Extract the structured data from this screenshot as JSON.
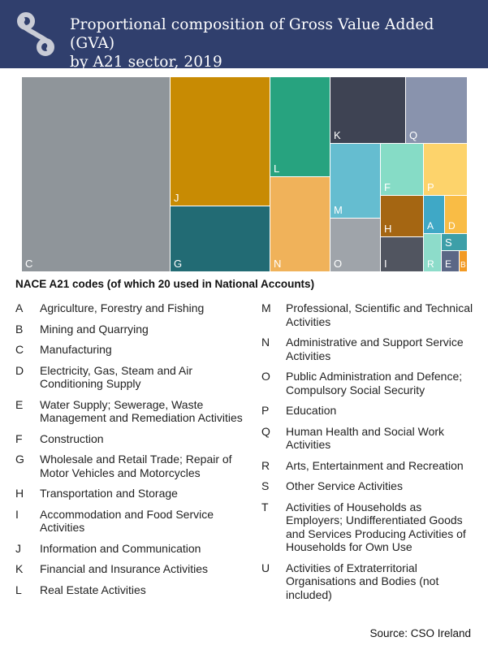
{
  "header": {
    "title_line1": "Proportional composition of Gross Value Added (GVA)",
    "title_line2": "by A21 sector, 2019",
    "logo_icon": "cso-logo-icon",
    "background_color": "#303f6d"
  },
  "chart_data": {
    "type": "treemap",
    "tiles": [
      {
        "code": "C",
        "color": "#8f959a"
      },
      {
        "code": "J",
        "color": "#c88b03"
      },
      {
        "code": "G",
        "color": "#226b74"
      },
      {
        "code": "L",
        "color": "#27a37f"
      },
      {
        "code": "N",
        "color": "#f0b25a"
      },
      {
        "code": "K",
        "color": "#3e4353"
      },
      {
        "code": "Q",
        "color": "#8993ad"
      },
      {
        "code": "M",
        "color": "#65bdd0"
      },
      {
        "code": "F",
        "color": "#86dcc6"
      },
      {
        "code": "P",
        "color": "#fdd36b"
      },
      {
        "code": "O",
        "color": "#9fa4aa"
      },
      {
        "code": "H",
        "color": "#a56612"
      },
      {
        "code": "A",
        "color": "#3fa8c6"
      },
      {
        "code": "D",
        "color": "#f9bc45"
      },
      {
        "code": "I",
        "color": "#515560"
      },
      {
        "code": "R",
        "color": "#8ddcca"
      },
      {
        "code": "S",
        "color": "#3d9fa8"
      },
      {
        "code": "E",
        "color": "#5b6786"
      },
      {
        "code": "B",
        "color": "#f29a24"
      }
    ]
  },
  "legend": {
    "title": "NACE A21 codes (of which 20 used in National Accounts)",
    "left": [
      {
        "code": "A",
        "desc": "Agriculture, Forestry and Fishing"
      },
      {
        "code": "B",
        "desc": "Mining and Quarrying"
      },
      {
        "code": "C",
        "desc": "Manufacturing"
      },
      {
        "code": "D",
        "desc": "Electricity, Gas, Steam and Air Conditioning Supply"
      },
      {
        "code": "E",
        "desc": "Water Supply; Sewerage, Waste Management and Remediation Activities"
      },
      {
        "code": "F",
        "desc": "Construction"
      },
      {
        "code": "G",
        "desc": "Wholesale and Retail Trade; Repair of Motor Vehicles and Motorcycles"
      },
      {
        "code": "H",
        "desc": "Transportation and Storage"
      },
      {
        "code": "I",
        "desc": "Accommodation and Food Service Activities"
      },
      {
        "code": "J",
        "desc": "Information and Communication"
      },
      {
        "code": "K",
        "desc": "Financial and Insurance Activities"
      },
      {
        "code": "L",
        "desc": "Real Estate Activities"
      }
    ],
    "right": [
      {
        "code": "M",
        "desc": "Professional, Scientific and Technical Activities"
      },
      {
        "code": "N",
        "desc": "Administrative and Support Service Activities"
      },
      {
        "code": "O",
        "desc": "Public Administration and Defence; Compulsory Social Security"
      },
      {
        "code": "P",
        "desc": "Education"
      },
      {
        "code": "Q",
        "desc": "Human Health and Social Work Activities"
      },
      {
        "code": "R",
        "desc": "Arts, Entertainment and Recreation"
      },
      {
        "code": "S",
        "desc": "Other Service Activities"
      },
      {
        "code": "T",
        "desc": "Activities of Households as Employers; Undifferentiated Goods and Services Producing Activities of Households for Own Use"
      },
      {
        "code": "U",
        "desc": "Activities of Extraterritorial Organisations and Bodies (not included)"
      }
    ]
  },
  "source": "Source:  CSO Ireland"
}
